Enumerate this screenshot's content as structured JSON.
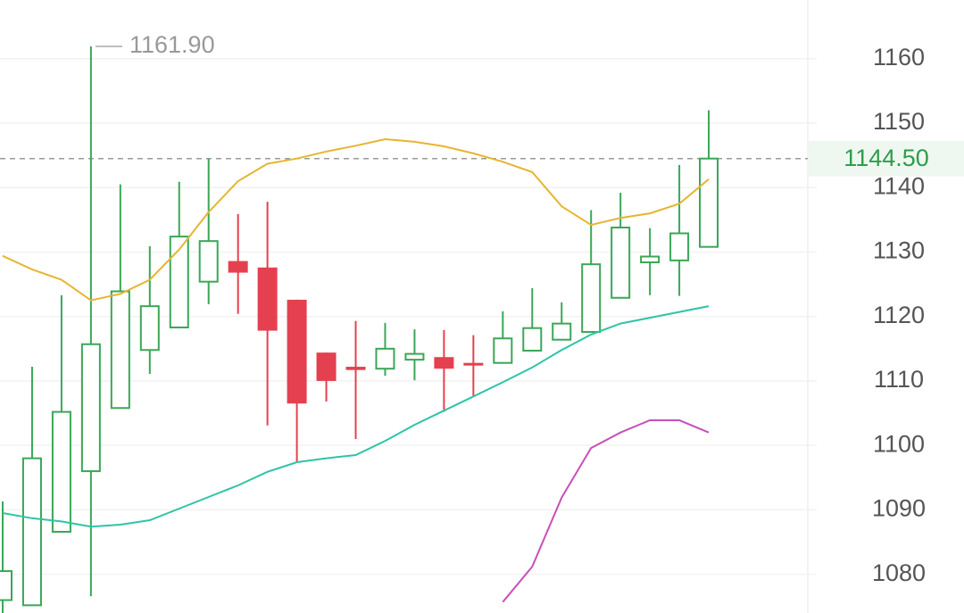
{
  "chart_data": {
    "type": "candlestick",
    "ylim": [
      1074,
      1169.1
    ],
    "yticks": [
      1080,
      1090,
      1100,
      1110,
      1120,
      1130,
      1140,
      1150,
      1160
    ],
    "up_color": "#3aa757",
    "down_color": "#e5404f",
    "grid": true,
    "candles": {
      "open": [
        1076,
        1075.2,
        1086.6,
        1096.0,
        1105.8,
        1114.8,
        1118.3,
        1125.4,
        1128.6,
        1127.6,
        1122.6,
        1114.4,
        1112.2,
        1111.9,
        1113.3,
        1113.7,
        1112.8,
        1112.8,
        1114.7,
        1116.4,
        1117.6,
        1122.9,
        1128.4,
        1128.7,
        1130.8
      ],
      "high": [
        1091.3,
        1112.2,
        1123.3,
        1161.9,
        1140.5,
        1130.9,
        1140.9,
        1144.5,
        1135.9,
        1137.8,
        1122.6,
        1114.4,
        1119.3,
        1119.0,
        1118.0,
        1117.9,
        1117.1,
        1120.8,
        1124.4,
        1122.2,
        1136.5,
        1139.2,
        1133.7,
        1143.5,
        1152.0
      ],
      "low": [
        1073,
        1075.2,
        1086.6,
        1076.6,
        1105.8,
        1111.1,
        1118.3,
        1121.9,
        1120.4,
        1103.1,
        1097.4,
        1106.8,
        1101.0,
        1110.8,
        1110.1,
        1105.2,
        1107.6,
        1112.8,
        1114.7,
        1116.4,
        1117.6,
        1122.9,
        1123.3,
        1123.2,
        1130.8
      ],
      "close": [
        1080.5,
        1098.0,
        1105.2,
        1115.7,
        1123.9,
        1121.6,
        1132.4,
        1131.7,
        1126.8,
        1117.8,
        1106.5,
        1110.0,
        1111.7,
        1115.0,
        1114.2,
        1111.9,
        1112.5,
        1116.6,
        1118.2,
        1118.9,
        1128.1,
        1133.8,
        1129.3,
        1132.9,
        1144.5
      ]
    },
    "lines": [
      {
        "color": "#e6b530",
        "values": [
          1129.4,
          1127.3,
          1125.7,
          1122.5,
          1123.5,
          1125.7,
          1130.4,
          1136.2,
          1141.0,
          1143.7,
          1144.5,
          1145.6,
          1146.5,
          1147.5,
          1147.1,
          1146.4,
          1145.3,
          1144.0,
          1142.4,
          1137.1,
          1134.2,
          1135.3,
          1136.0,
          1137.5,
          1141.3
        ]
      },
      {
        "color": "#2ec4a6",
        "values": [
          1089.5,
          1088.7,
          1088.2,
          1087.4,
          1087.7,
          1088.4,
          1090.2,
          1092.0,
          1093.8,
          1095.9,
          1097.4,
          1098.0,
          1098.5,
          1100.7,
          1103.2,
          1105.4,
          1107.6,
          1109.8,
          1112.1,
          1114.8,
          1117.2,
          1118.9,
          1119.8,
          1120.7,
          1121.6
        ]
      },
      {
        "color": "#c84fb8",
        "values": [
          null,
          null,
          null,
          null,
          null,
          null,
          null,
          null,
          null,
          null,
          null,
          null,
          null,
          null,
          null,
          null,
          null,
          1075.7,
          1081.2,
          1091.9,
          1099.6,
          1102.0,
          1103.9,
          1103.9,
          1102.0
        ]
      }
    ],
    "max_label": {
      "value": 1161.9,
      "label": "1161.90"
    },
    "last_price": {
      "value": 1144.5,
      "label": "1144.50"
    }
  }
}
